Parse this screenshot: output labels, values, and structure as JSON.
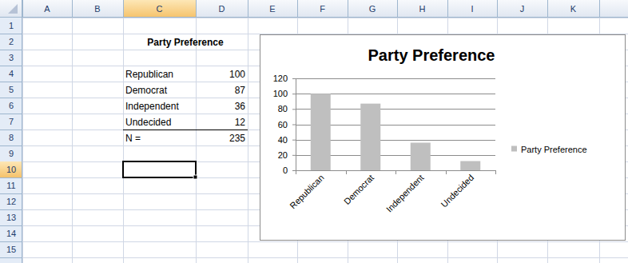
{
  "sheet": {
    "columns": [
      "A",
      "B",
      "C",
      "D",
      "E",
      "F",
      "G",
      "H",
      "I",
      "J",
      "K"
    ],
    "rows": [
      1,
      2,
      3,
      4,
      5,
      6,
      7,
      8,
      9,
      10,
      11,
      12,
      13,
      14,
      15
    ]
  },
  "table": {
    "title": "Party Preference",
    "rows": [
      [
        "Republican",
        100
      ],
      [
        "Democrat",
        87
      ],
      [
        "Independent",
        36
      ],
      [
        "Undecided",
        12
      ]
    ],
    "total": [
      "N =",
      235
    ]
  },
  "chart_data": {
    "type": "bar",
    "title": "Party Preference",
    "categories": [
      "Republican",
      "Democrat",
      "Independent",
      "Undecided"
    ],
    "series": [
      {
        "name": "Party Preference",
        "color": "#bfbfbf",
        "values": [
          100,
          87,
          36,
          12
        ]
      }
    ],
    "ylim": [
      0,
      120
    ],
    "yticks": [
      0,
      20,
      40,
      60,
      80,
      100,
      120
    ],
    "grid": true,
    "legend": "right"
  }
}
